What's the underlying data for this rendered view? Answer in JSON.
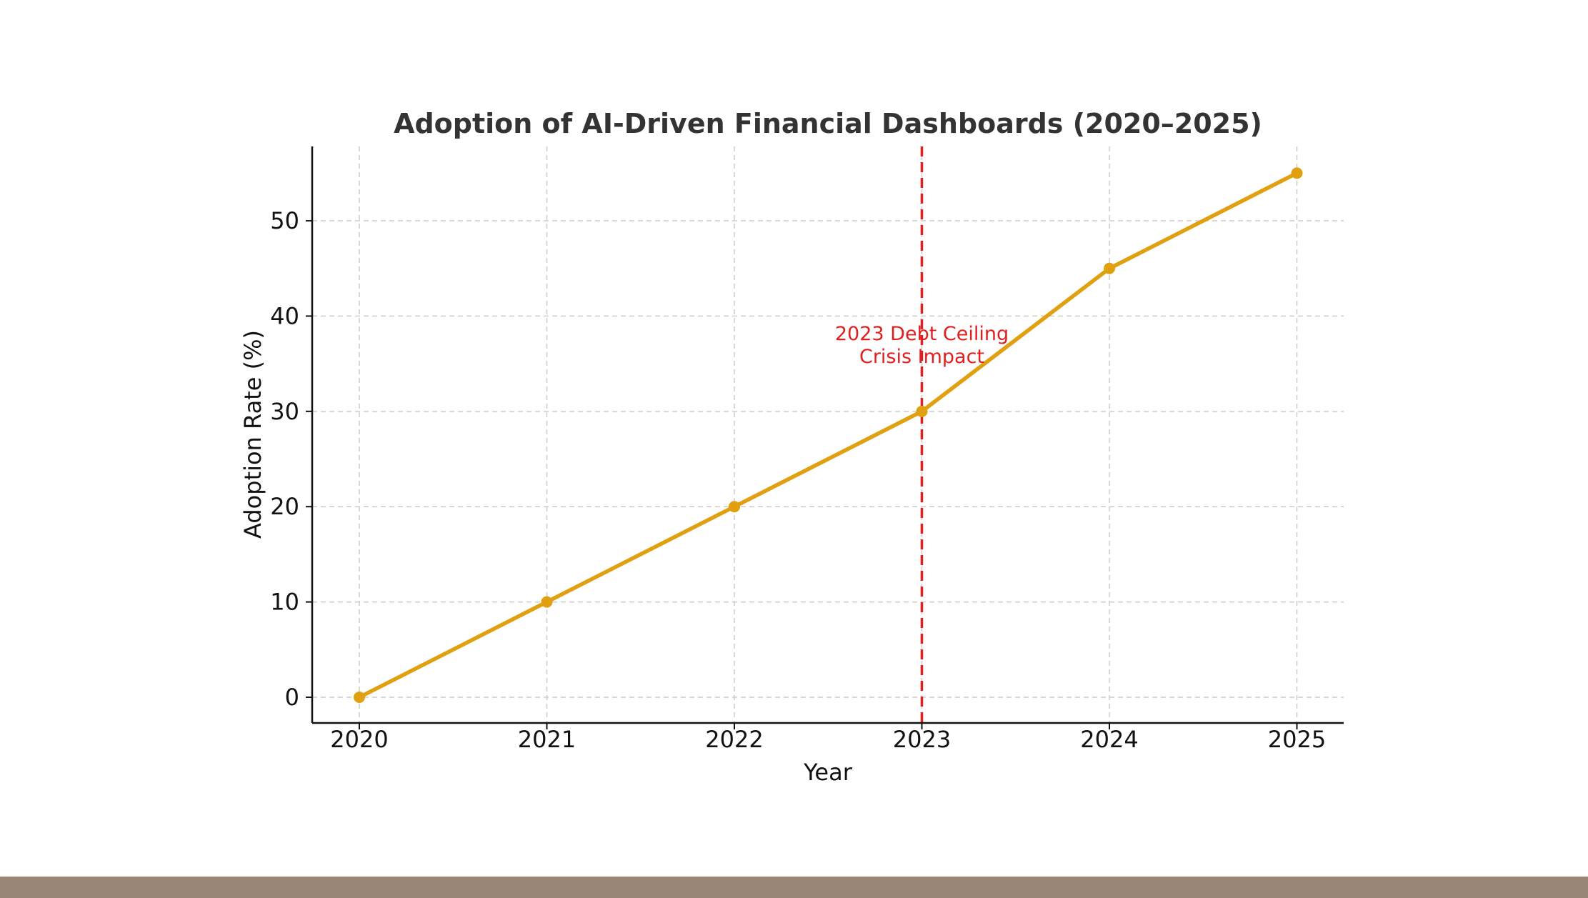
{
  "colors": {
    "background": "#ffffff",
    "line": "#e0a010",
    "annotation": "#e02020",
    "axis": "#111111",
    "grid": "#cccccc",
    "title": "#333333",
    "bottom_bar": "#9a8677"
  },
  "chart_data": {
    "type": "line",
    "title": "Adoption of AI-Driven Financial Dashboards (2020–2025)",
    "xlabel": "Year",
    "ylabel": "Adoption Rate (%)",
    "x": [
      "2020",
      "2021",
      "2022",
      "2023",
      "2024",
      "2025"
    ],
    "series": [
      {
        "values": [
          0,
          10,
          20,
          30,
          45,
          55
        ]
      }
    ],
    "yticks": [
      0,
      10,
      20,
      30,
      40,
      50
    ],
    "ylim": [
      -2.7,
      57.8
    ],
    "grid": true,
    "annotation": {
      "x": "2023",
      "lines": [
        "2023 Debt Ceiling",
        "Crisis Impact"
      ]
    }
  }
}
